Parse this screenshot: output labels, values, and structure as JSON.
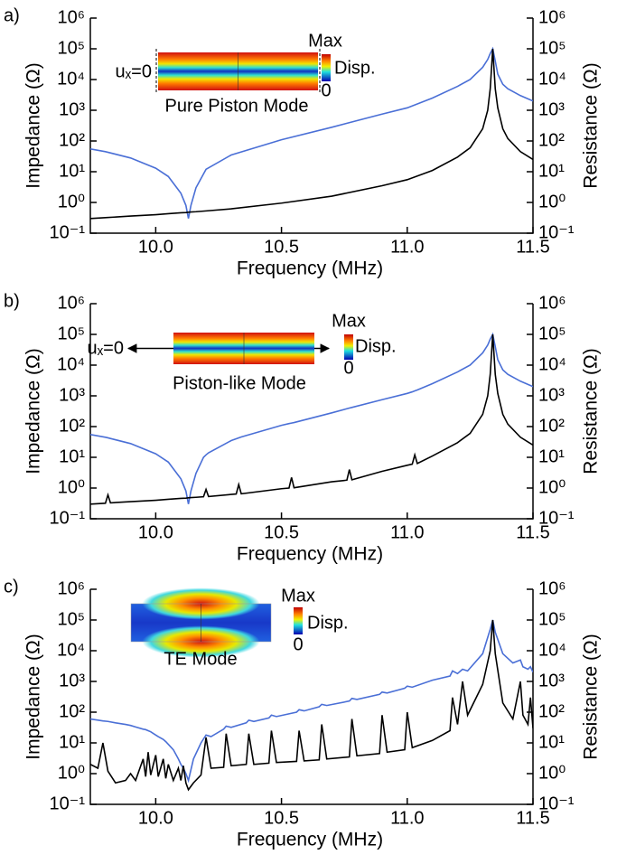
{
  "chart_data": [
    {
      "type": "line",
      "panel_label": "a)",
      "xlabel": "Frequency (MHz)",
      "ylabel": "Impedance (Ω)",
      "y2label": "Resistance (Ω)",
      "log_y": true,
      "xlim": [
        9.74,
        11.5
      ],
      "xticks": [
        {
          "value": 10,
          "label": "10.0"
        },
        10.5,
        {
          "value": 11,
          "label": "11.0"
        },
        11.5
      ],
      "ylim": [
        0.1,
        1000000
      ],
      "yticks": [
        {
          "value": 0.1,
          "label": "10⁻¹"
        },
        {
          "value": 1,
          "label": "10⁰"
        },
        {
          "value": 10,
          "label": "10¹"
        },
        {
          "value": 100,
          "label": "10²"
        },
        {
          "value": 1000,
          "label": "10³"
        },
        {
          "value": 10000,
          "label": "10⁴"
        },
        {
          "value": 100000,
          "label": "10⁵"
        },
        {
          "value": 1000000,
          "label": "10⁶"
        }
      ],
      "y2lim": [
        0.1,
        1000000
      ],
      "y2ticks": [
        {
          "value": 0.1,
          "label": "10⁻¹"
        },
        {
          "value": 1,
          "label": "10⁰"
        },
        {
          "value": 10,
          "label": "10¹"
        },
        {
          "value": 100,
          "label": "10²"
        },
        {
          "value": 1000,
          "label": "10³"
        },
        {
          "value": 10000,
          "label": "10⁴"
        },
        {
          "value": 100000,
          "label": "10⁵"
        },
        {
          "value": 1000000,
          "label": "10⁶"
        }
      ],
      "inset": {
        "caption": "Pure Piston Mode",
        "boundary": "uₓ=0",
        "max": "Max",
        "disp": "Disp.",
        "zero": "0"
      },
      "x": [
        9.74,
        9.8,
        9.9,
        10.0,
        10.05,
        10.1,
        10.12,
        10.13,
        10.14,
        10.16,
        10.2,
        10.3,
        10.5,
        10.7,
        10.9,
        11.0,
        11.1,
        11.2,
        11.25,
        11.3,
        11.32,
        11.33,
        11.34,
        11.35,
        11.36,
        11.38,
        11.4,
        11.45,
        11.5
      ],
      "series": [
        {
          "color": "#4a6fd6",
          "values": [
            55,
            45,
            28,
            13,
            7,
            2,
            0.8,
            0.3,
            0.8,
            3,
            12,
            35,
            110,
            280,
            750,
            1200,
            2500,
            6000,
            10000,
            25000,
            45000,
            70000,
            100000,
            40000,
            15000,
            7000,
            5000,
            3000,
            2000
          ]
        },
        {
          "color": "#000000",
          "axis": "y2",
          "values": [
            0.3,
            0.32,
            0.36,
            0.4,
            0.43,
            0.46,
            0.47,
            0.48,
            0.49,
            0.5,
            0.53,
            0.62,
            0.95,
            1.6,
            3.5,
            5.5,
            11,
            30,
            60,
            250,
            1000,
            5000,
            100000,
            5000,
            1200,
            250,
            120,
            45,
            25
          ]
        }
      ]
    },
    {
      "type": "line",
      "panel_label": "b)",
      "xlabel": "Frequency (MHz)",
      "ylabel": "Impedance (Ω)",
      "y2label": "Resistance (Ω)",
      "log_y": true,
      "xlim": [
        9.74,
        11.5
      ],
      "xticks": [
        {
          "value": 10,
          "label": "10.0"
        },
        10.5,
        {
          "value": 11,
          "label": "11.0"
        },
        11.5
      ],
      "ylim": [
        0.1,
        1000000
      ],
      "yticks": [
        {
          "value": 0.1,
          "label": "10⁻¹"
        },
        {
          "value": 1,
          "label": "10⁰"
        },
        {
          "value": 10,
          "label": "10¹"
        },
        {
          "value": 100,
          "label": "10²"
        },
        {
          "value": 1000,
          "label": "10³"
        },
        {
          "value": 10000,
          "label": "10⁴"
        },
        {
          "value": 100000,
          "label": "10⁵"
        },
        {
          "value": 1000000,
          "label": "10⁶"
        }
      ],
      "y2lim": [
        0.1,
        1000000
      ],
      "y2ticks": [
        {
          "value": 0.1,
          "label": "10⁻¹"
        },
        {
          "value": 1,
          "label": "10⁰"
        },
        {
          "value": 10,
          "label": "10¹"
        },
        {
          "value": 100,
          "label": "10²"
        },
        {
          "value": 1000,
          "label": "10³"
        },
        {
          "value": 10000,
          "label": "10⁴"
        },
        {
          "value": 100000,
          "label": "10⁵"
        },
        {
          "value": 1000000,
          "label": "10⁶"
        }
      ],
      "inset": {
        "caption": "Piston-like Mode",
        "boundary": "uₓ=0",
        "max": "Max",
        "disp": "Disp.",
        "zero": "0"
      },
      "x": [
        9.74,
        9.8,
        9.81,
        9.82,
        9.9,
        10.0,
        10.05,
        10.1,
        10.12,
        10.13,
        10.14,
        10.16,
        10.19,
        10.2,
        10.21,
        10.3,
        10.32,
        10.33,
        10.34,
        10.5,
        10.53,
        10.54,
        10.55,
        10.7,
        10.76,
        10.77,
        10.78,
        10.9,
        11.0,
        11.02,
        11.03,
        11.04,
        11.1,
        11.2,
        11.25,
        11.3,
        11.32,
        11.33,
        11.34,
        11.35,
        11.36,
        11.38,
        11.4,
        11.45,
        11.5
      ],
      "series": [
        {
          "color": "#4a6fd6",
          "values": [
            55,
            45,
            43,
            41,
            28,
            13,
            7,
            2,
            0.8,
            0.3,
            0.8,
            3,
            10,
            12,
            14,
            35,
            40,
            43,
            46,
            110,
            125,
            130,
            135,
            280,
            380,
            400,
            420,
            750,
            1200,
            1350,
            1450,
            1550,
            2500,
            6000,
            10000,
            25000,
            45000,
            70000,
            100000,
            40000,
            15000,
            7000,
            5000,
            3000,
            2000
          ]
        },
        {
          "color": "#000000",
          "axis": "y2",
          "values": [
            0.3,
            0.32,
            0.6,
            0.33,
            0.36,
            0.4,
            0.43,
            0.46,
            0.47,
            0.48,
            0.49,
            0.5,
            0.52,
            0.9,
            0.53,
            0.62,
            0.64,
            1.3,
            0.65,
            0.95,
            1.0,
            2.2,
            1.02,
            1.6,
            1.8,
            4,
            1.85,
            3.5,
            5.5,
            6,
            12,
            6.3,
            11,
            30,
            60,
            250,
            1000,
            5000,
            100000,
            5000,
            1200,
            250,
            120,
            45,
            25
          ]
        }
      ]
    },
    {
      "type": "line",
      "panel_label": "c)",
      "xlabel": "Frequency (MHz)",
      "ylabel": "Impedance (Ω)",
      "y2label": "Resistance (Ω)",
      "log_y": true,
      "xlim": [
        9.74,
        11.5
      ],
      "xticks": [
        {
          "value": 10,
          "label": "10.0"
        },
        10.5,
        {
          "value": 11,
          "label": "11.0"
        },
        11.5
      ],
      "ylim": [
        0.1,
        1000000
      ],
      "yticks": [
        {
          "value": 0.1,
          "label": "10⁻¹"
        },
        {
          "value": 1,
          "label": "10⁰"
        },
        {
          "value": 10,
          "label": "10¹"
        },
        {
          "value": 100,
          "label": "10²"
        },
        {
          "value": 1000,
          "label": "10³"
        },
        {
          "value": 10000,
          "label": "10⁴"
        },
        {
          "value": 100000,
          "label": "10⁵"
        },
        {
          "value": 1000000,
          "label": "10⁶"
        }
      ],
      "y2lim": [
        0.1,
        1000000
      ],
      "y2ticks": [
        {
          "value": 0.1,
          "label": "10⁻¹"
        },
        {
          "value": 1,
          "label": "10⁰"
        },
        {
          "value": 10,
          "label": "10¹"
        },
        {
          "value": 100,
          "label": "10²"
        },
        {
          "value": 1000,
          "label": "10³"
        },
        {
          "value": 10000,
          "label": "10⁴"
        },
        {
          "value": 100000,
          "label": "10⁵"
        },
        {
          "value": 1000000,
          "label": "10⁶"
        }
      ],
      "inset": {
        "caption": "TE Mode",
        "max": "Max",
        "disp": "Disp.",
        "zero": "0"
      },
      "x": [
        9.74,
        9.77,
        9.79,
        9.81,
        9.84,
        9.88,
        9.9,
        9.92,
        9.95,
        9.96,
        9.97,
        9.98,
        10.0,
        10.01,
        10.03,
        10.04,
        10.05,
        10.07,
        10.09,
        10.1,
        10.11,
        10.12,
        10.13,
        10.15,
        10.18,
        10.2,
        10.22,
        10.27,
        10.28,
        10.3,
        10.36,
        10.37,
        10.39,
        10.45,
        10.46,
        10.48,
        10.56,
        10.57,
        10.59,
        10.65,
        10.66,
        10.68,
        10.77,
        10.78,
        10.8,
        10.89,
        10.9,
        10.92,
        10.99,
        11.0,
        11.02,
        11.1,
        11.17,
        11.18,
        11.2,
        11.22,
        11.24,
        11.3,
        11.33,
        11.34,
        11.35,
        11.38,
        11.42,
        11.45,
        11.46,
        11.48,
        11.49,
        11.5
      ],
      "series": [
        {
          "color": "#4a6fd6",
          "values": [
            60,
            55,
            52,
            50,
            45,
            40,
            37,
            33,
            28,
            27,
            25,
            23,
            18,
            16,
            13,
            11,
            9,
            6,
            3,
            2,
            1.5,
            1.0,
            0.6,
            3,
            10,
            18,
            16,
            28,
            35,
            32,
            45,
            55,
            50,
            65,
            80,
            72,
            100,
            120,
            110,
            150,
            180,
            165,
            230,
            280,
            260,
            380,
            450,
            420,
            600,
            700,
            650,
            1100,
            1500,
            2200,
            1800,
            2500,
            2200,
            8000,
            50000,
            100000,
            40000,
            8000,
            4000,
            5000,
            3000,
            2500,
            3000,
            2000
          ]
        },
        {
          "color": "#000000",
          "axis": "y2",
          "values": [
            2,
            1.5,
            10,
            1.2,
            0.5,
            0.6,
            1.0,
            0.6,
            3,
            0.8,
            5,
            0.9,
            4,
            0.8,
            3,
            0.7,
            2,
            0.6,
            1.5,
            0.6,
            1.8,
            0.5,
            0.3,
            0.5,
            0.9,
            15,
            1.5,
            1.6,
            20,
            1.8,
            2,
            20,
            2,
            2.2,
            25,
            2.3,
            2.5,
            25,
            2.6,
            2.8,
            40,
            3,
            3.5,
            60,
            3.8,
            4.5,
            80,
            5,
            6,
            100,
            7,
            12,
            25,
            300,
            40,
            1000,
            80,
            800,
            10000,
            100000,
            8000,
            200,
            60,
            1000,
            80,
            40,
            300,
            30
          ]
        }
      ]
    }
  ]
}
